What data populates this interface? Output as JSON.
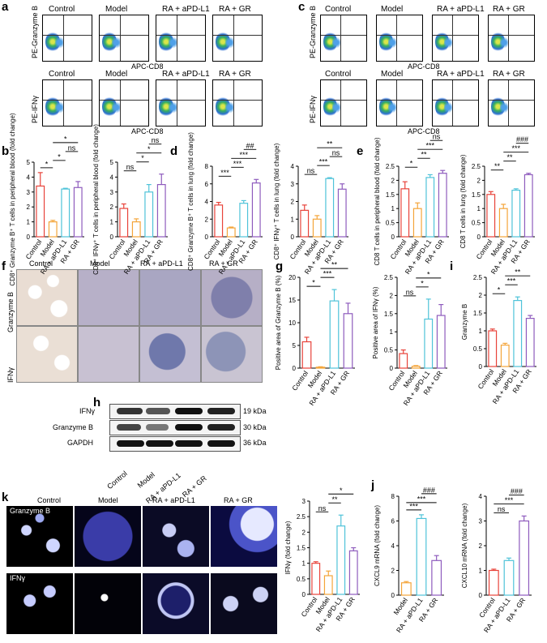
{
  "panel_labels": {
    "a": "a",
    "b": "b",
    "c": "c",
    "d": "d",
    "e": "e",
    "f": "f",
    "g": "g",
    "h": "h",
    "i": "i",
    "j": "j",
    "k": "k"
  },
  "groups": [
    "Control",
    "Model",
    "RA + aPD-L1",
    "RA + GR"
  ],
  "flow": {
    "ylabel_granzyme": "PE-Granzyme B",
    "ylabel_ifn": "PE-IFNγ",
    "xlabel": "APC-CD8"
  },
  "ihc": {
    "row1": "Granzyme B",
    "row2": "IFNγ"
  },
  "wb": {
    "rows": [
      {
        "name": "IFNγ",
        "kda": "19 kDa"
      },
      {
        "name": "Granzyme B",
        "kda": "30 kDa"
      },
      {
        "name": "GAPDH",
        "kda": "36 kDa"
      }
    ]
  },
  "fluor": {
    "row1": "Granzyme B",
    "row2": "IFNγ"
  },
  "chart_data": [
    {
      "id": "b1",
      "type": "bar",
      "ylabel": "CD8⁺ Granzyme B⁺ T cells in peripheral blood (fold change)",
      "categories": [
        "Control",
        "Model",
        "RA + aPD-L1",
        "RA + GR"
      ],
      "values": [
        3.4,
        1.0,
        3.2,
        3.3
      ],
      "errors": [
        0.9,
        0.1,
        0.05,
        0.4
      ],
      "ylim": [
        0,
        5
      ],
      "ticks": [
        0,
        1,
        2,
        3,
        4,
        5
      ],
      "colors": [
        "#e8433a",
        "#f4a53a",
        "#4fc3d9",
        "#8e5bbd"
      ],
      "sig": [
        {
          "a": 0,
          "b": 1,
          "t": "*"
        },
        {
          "a": 1,
          "b": 2,
          "t": "*"
        },
        {
          "a": 2,
          "b": 3,
          "t": "ns"
        },
        {
          "a": 1,
          "b": 3,
          "t": "*"
        }
      ]
    },
    {
      "id": "b2",
      "type": "bar",
      "ylabel": "CD8⁺ IFNγ⁺ T cells in peripheral blood (fold change)",
      "categories": [
        "Control",
        "Model",
        "RA + aPD-L1",
        "RA + GR"
      ],
      "values": [
        1.9,
        1.0,
        3.0,
        3.5
      ],
      "errors": [
        0.3,
        0.2,
        0.5,
        0.7
      ],
      "ylim": [
        0,
        5
      ],
      "ticks": [
        0,
        1,
        2,
        3,
        4,
        5
      ],
      "colors": [
        "#e8433a",
        "#f4a53a",
        "#4fc3d9",
        "#8e5bbd"
      ],
      "sig": [
        {
          "a": 0,
          "b": 1,
          "t": "ns"
        },
        {
          "a": 1,
          "b": 2,
          "t": "*"
        },
        {
          "a": 1,
          "b": 3,
          "t": "*"
        },
        {
          "a": 2,
          "b": 3,
          "t": "ns"
        }
      ]
    },
    {
      "id": "d1",
      "type": "bar",
      "ylabel": "CD8⁺ Granzyme B⁺ T cells in lung (fold change)",
      "categories": [
        "Control",
        "Model",
        "RA + aPD-L1",
        "RA + GR"
      ],
      "values": [
        3.6,
        1.0,
        3.8,
        6.1
      ],
      "errors": [
        0.3,
        0.1,
        0.3,
        0.4
      ],
      "ylim": [
        0,
        8
      ],
      "ticks": [
        0,
        2,
        4,
        6,
        8
      ],
      "colors": [
        "#e8433a",
        "#f4a53a",
        "#4fc3d9",
        "#8e5bbd"
      ],
      "sig": [
        {
          "a": 0,
          "b": 1,
          "t": "***"
        },
        {
          "a": 1,
          "b": 2,
          "t": "***"
        },
        {
          "a": 1,
          "b": 3,
          "t": "***"
        },
        {
          "a": 2,
          "b": 3,
          "t": "##"
        }
      ]
    },
    {
      "id": "d2",
      "type": "bar",
      "ylabel": "CD8⁺ IFNγ⁺ T cells in lung (fold change)",
      "categories": [
        "Control",
        "Model",
        "RA + aPD-L1",
        "RA + GR"
      ],
      "values": [
        1.5,
        1.0,
        3.3,
        2.7
      ],
      "errors": [
        0.3,
        0.2,
        0.05,
        0.3
      ],
      "ylim": [
        0,
        4
      ],
      "ticks": [
        0,
        1,
        2,
        3,
        4
      ],
      "colors": [
        "#e8433a",
        "#f4a53a",
        "#4fc3d9",
        "#8e5bbd"
      ],
      "sig": [
        {
          "a": 0,
          "b": 1,
          "t": "ns"
        },
        {
          "a": 1,
          "b": 2,
          "t": "***"
        },
        {
          "a": 2,
          "b": 3,
          "t": "ns"
        },
        {
          "a": 1,
          "b": 3,
          "t": "**"
        }
      ]
    },
    {
      "id": "e1",
      "type": "bar",
      "ylabel": "CD8 T cells in peripheral blood (fold change)",
      "categories": [
        "Control",
        "Model",
        "RA + aPD-L1",
        "RA + GR"
      ],
      "values": [
        1.7,
        1.0,
        2.1,
        2.25
      ],
      "errors": [
        0.25,
        0.2,
        0.1,
        0.1
      ],
      "ylim": [
        0,
        2.5
      ],
      "ticks": [
        0,
        0.5,
        1.0,
        1.5,
        2.0,
        2.5
      ],
      "colors": [
        "#e8433a",
        "#f4a53a",
        "#4fc3d9",
        "#8e5bbd"
      ],
      "sig": [
        {
          "a": 0,
          "b": 1,
          "t": "*"
        },
        {
          "a": 1,
          "b": 2,
          "t": "**"
        },
        {
          "a": 1,
          "b": 3,
          "t": "***"
        },
        {
          "a": 2,
          "b": 3,
          "t": "ns"
        }
      ]
    },
    {
      "id": "e2",
      "type": "bar",
      "ylabel": "CD8 T cells in lung (fold change)",
      "categories": [
        "Control",
        "Model",
        "RA + aPD-L1",
        "RA + GR"
      ],
      "values": [
        1.5,
        1.0,
        1.65,
        2.2
      ],
      "errors": [
        0.1,
        0.15,
        0.05,
        0.05
      ],
      "ylim": [
        0,
        2.5
      ],
      "ticks": [
        0,
        0.5,
        1.0,
        1.5,
        2.0,
        2.5
      ],
      "colors": [
        "#e8433a",
        "#f4a53a",
        "#4fc3d9",
        "#8e5bbd"
      ],
      "sig": [
        {
          "a": 0,
          "b": 1,
          "t": "**"
        },
        {
          "a": 1,
          "b": 2,
          "t": "**"
        },
        {
          "a": 1,
          "b": 3,
          "t": "***"
        },
        {
          "a": 2,
          "b": 3,
          "t": "###"
        }
      ]
    },
    {
      "id": "g1",
      "type": "bar",
      "ylabel": "Positive area of Granzyme B (%)",
      "categories": [
        "Control",
        "Model",
        "RA + aPD-L1",
        "RA + GR"
      ],
      "values": [
        5.8,
        0.2,
        14.8,
        12.0
      ],
      "errors": [
        1.0,
        0.1,
        2.5,
        2.3
      ],
      "ylim": [
        0,
        20
      ],
      "ticks": [
        0,
        5,
        10,
        15,
        20
      ],
      "colors": [
        "#e8433a",
        "#f4a53a",
        "#4fc3d9",
        "#8e5bbd"
      ],
      "sig": [
        {
          "a": 0,
          "b": 1,
          "t": "*"
        },
        {
          "a": 1,
          "b": 2,
          "t": "***"
        },
        {
          "a": 1,
          "b": 3,
          "t": "**"
        }
      ]
    },
    {
      "id": "g2",
      "type": "bar",
      "ylabel": "Positive area of IFNγ (%)",
      "categories": [
        "Control",
        "Model",
        "RA + aPD-L1",
        "RA + GR"
      ],
      "values": [
        0.4,
        0.05,
        1.35,
        1.45
      ],
      "errors": [
        0.1,
        0.02,
        0.55,
        0.3
      ],
      "ylim": [
        0,
        2.5
      ],
      "ticks": [
        0,
        0.5,
        1.0,
        1.5,
        2.0,
        2.5
      ],
      "colors": [
        "#e8433a",
        "#f4a53a",
        "#4fc3d9",
        "#8e5bbd"
      ],
      "sig": [
        {
          "a": 0,
          "b": 1,
          "t": "ns"
        },
        {
          "a": 1,
          "b": 2,
          "t": "*"
        },
        {
          "a": 1,
          "b": 3,
          "t": "*"
        }
      ]
    },
    {
      "id": "i1",
      "type": "bar",
      "ylabel": "Granzyme B",
      "categories": [
        "Control",
        "Model",
        "RA + aPD-L1",
        "RA + GR"
      ],
      "values": [
        1.0,
        0.6,
        1.85,
        1.35
      ],
      "errors": [
        0.05,
        0.05,
        0.1,
        0.08
      ],
      "ylim": [
        0,
        2.5
      ],
      "ticks": [
        0,
        0.5,
        1.0,
        1.5,
        2.0,
        2.5
      ],
      "colors": [
        "#e8433a",
        "#f4a53a",
        "#4fc3d9",
        "#8e5bbd"
      ],
      "sig": [
        {
          "a": 0,
          "b": 1,
          "t": "*"
        },
        {
          "a": 1,
          "b": 2,
          "t": "***"
        },
        {
          "a": 1,
          "b": 3,
          "t": "**"
        }
      ]
    },
    {
      "id": "h1",
      "type": "bar",
      "ylabel": "IFNγ (fold change)",
      "categories": [
        "Control",
        "Model",
        "RA + aPD-L1",
        "RA + GR"
      ],
      "values": [
        1.0,
        0.6,
        2.2,
        1.4
      ],
      "errors": [
        0.05,
        0.15,
        0.35,
        0.1
      ],
      "ylim": [
        0,
        3.0
      ],
      "ticks": [
        0,
        0.5,
        1.0,
        1.5,
        2.0,
        2.5,
        3.0
      ],
      "colors": [
        "#e8433a",
        "#f4a53a",
        "#4fc3d9",
        "#8e5bbd"
      ],
      "sig": [
        {
          "a": 0,
          "b": 1,
          "t": "ns"
        },
        {
          "a": 1,
          "b": 2,
          "t": "**"
        },
        {
          "a": 1,
          "b": 3,
          "t": "*"
        }
      ]
    },
    {
      "id": "j1",
      "type": "bar",
      "ylabel": "CXCL9 mRNA (fold change)",
      "categories": [
        "Model",
        "RA + aPD-L1",
        "RA + GR"
      ],
      "values": [
        1.0,
        6.2,
        2.8
      ],
      "errors": [
        0.1,
        0.3,
        0.4
      ],
      "ylim": [
        0,
        8
      ],
      "ticks": [
        0,
        2,
        4,
        6,
        8
      ],
      "colors": [
        "#f4a53a",
        "#4fc3d9",
        "#8e5bbd"
      ],
      "sig": [
        {
          "a": 0,
          "b": 1,
          "t": "***"
        },
        {
          "a": 0,
          "b": 2,
          "t": "***"
        },
        {
          "a": 1,
          "b": 2,
          "t": "###"
        }
      ]
    },
    {
      "id": "j2",
      "type": "bar",
      "ylabel": "CXCL10 mRNA (fold change)",
      "categories": [
        "Control",
        "RA + aPD-L1",
        "RA + GR"
      ],
      "values": [
        1.0,
        1.4,
        3.0
      ],
      "errors": [
        0.05,
        0.1,
        0.2
      ],
      "ylim": [
        0,
        4
      ],
      "ticks": [
        0,
        1,
        2,
        3,
        4
      ],
      "colors": [
        "#e8433a",
        "#4fc3d9",
        "#8e5bbd"
      ],
      "sig": [
        {
          "a": 0,
          "b": 1,
          "t": "ns"
        },
        {
          "a": 0,
          "b": 2,
          "t": "***"
        },
        {
          "a": 1,
          "b": 2,
          "t": "###"
        }
      ]
    }
  ]
}
